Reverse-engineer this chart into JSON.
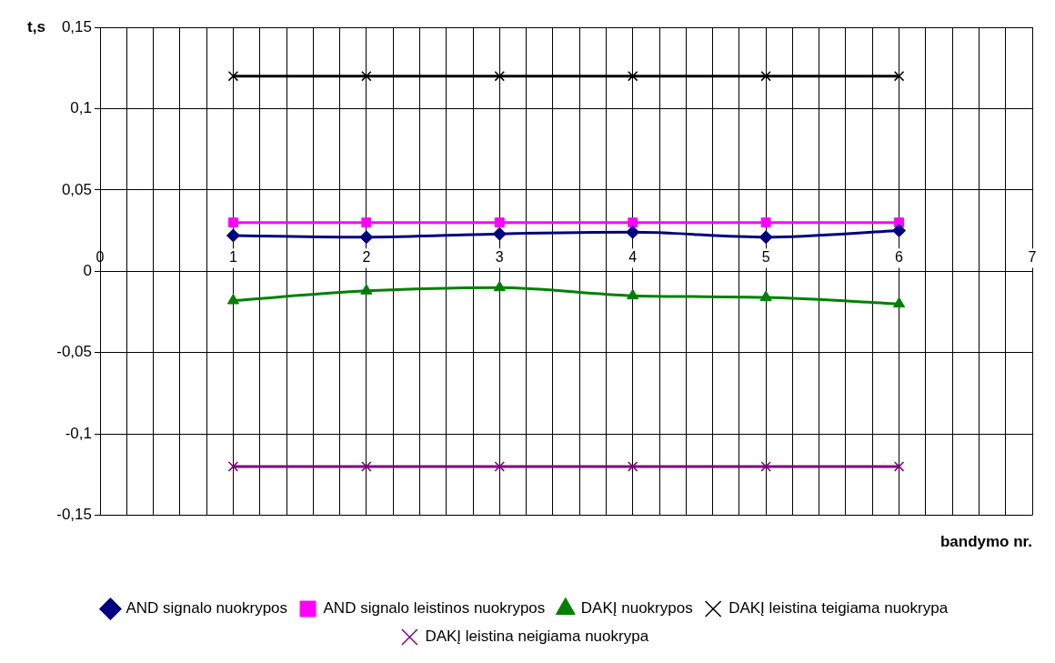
{
  "chart_data": {
    "type": "line",
    "xlabel": "bandymo nr.",
    "ylabel": "t,s",
    "xlim": [
      0,
      7
    ],
    "ylim": [
      -0.15,
      0.15
    ],
    "xticks": [
      0,
      {
        "value": 0.2,
        "label": null
      },
      {
        "value": 0.4,
        "label": null
      },
      {
        "value": 0.6,
        "label": null
      },
      {
        "value": 0.8,
        "label": null
      },
      1,
      {
        "value": 1.2,
        "label": null
      },
      {
        "value": 1.4,
        "label": null
      },
      {
        "value": 1.6,
        "label": null
      },
      {
        "value": 1.8,
        "label": null
      },
      2,
      {
        "value": 2.2,
        "label": null
      },
      {
        "value": 2.4,
        "label": null
      },
      {
        "value": 2.6,
        "label": null
      },
      {
        "value": 2.8,
        "label": null
      },
      3,
      {
        "value": 3.2,
        "label": null
      },
      {
        "value": 3.4,
        "label": null
      },
      {
        "value": 3.6,
        "label": null
      },
      {
        "value": 3.8,
        "label": null
      },
      4,
      {
        "value": 4.2,
        "label": null
      },
      {
        "value": 4.4,
        "label": null
      },
      {
        "value": 4.6,
        "label": null
      },
      {
        "value": 4.8,
        "label": null
      },
      5,
      {
        "value": 5.2,
        "label": null
      },
      {
        "value": 5.4,
        "label": null
      },
      {
        "value": 5.6,
        "label": null
      },
      {
        "value": 5.8,
        "label": null
      },
      6,
      {
        "value": 6.2,
        "label": null
      },
      {
        "value": 6.4,
        "label": null
      },
      {
        "value": 6.6,
        "label": null
      },
      {
        "value": 6.8,
        "label": null
      },
      7
    ],
    "yticks": [
      {
        "value": -0.15,
        "label": "-0,15"
      },
      {
        "value": -0.1,
        "label": "-0,1"
      },
      {
        "value": -0.05,
        "label": "-0,05"
      },
      0,
      {
        "value": 0.05,
        "label": "0,05"
      },
      {
        "value": 0.1,
        "label": "0,1"
      },
      {
        "value": 0.15,
        "label": "0,15"
      }
    ],
    "x": [
      1,
      2,
      3,
      4,
      5,
      6
    ],
    "series": [
      {
        "name": "AND signalo nuokrypos",
        "color": "#000080",
        "marker": "diamond",
        "values": [
          0.022,
          0.021,
          0.023,
          0.024,
          0.021,
          0.025
        ]
      },
      {
        "name": "AND signalo leistinos nuokrypos",
        "color": "#ff00ff",
        "marker": "square",
        "values": [
          0.03,
          0.03,
          0.03,
          0.03,
          0.03,
          0.03
        ]
      },
      {
        "name": "DAKĮ nuokrypos",
        "color": "#008000",
        "marker": "triangle",
        "values": [
          -0.018,
          -0.012,
          -0.01,
          -0.015,
          -0.016,
          -0.02
        ]
      },
      {
        "name": "DAKĮ leistina teigiama nuokrypa",
        "color": "#000000",
        "marker": "cross",
        "values": [
          0.12,
          0.12,
          0.12,
          0.12,
          0.12,
          0.12
        ]
      },
      {
        "name": "DAKĮ leistina neigiama nuokrypa",
        "color": "#800080",
        "marker": "cross",
        "values": [
          -0.12,
          -0.12,
          -0.12,
          -0.12,
          -0.12,
          -0.12
        ]
      }
    ],
    "grid": true,
    "legend": "bottom",
    "line_style": "solid"
  }
}
